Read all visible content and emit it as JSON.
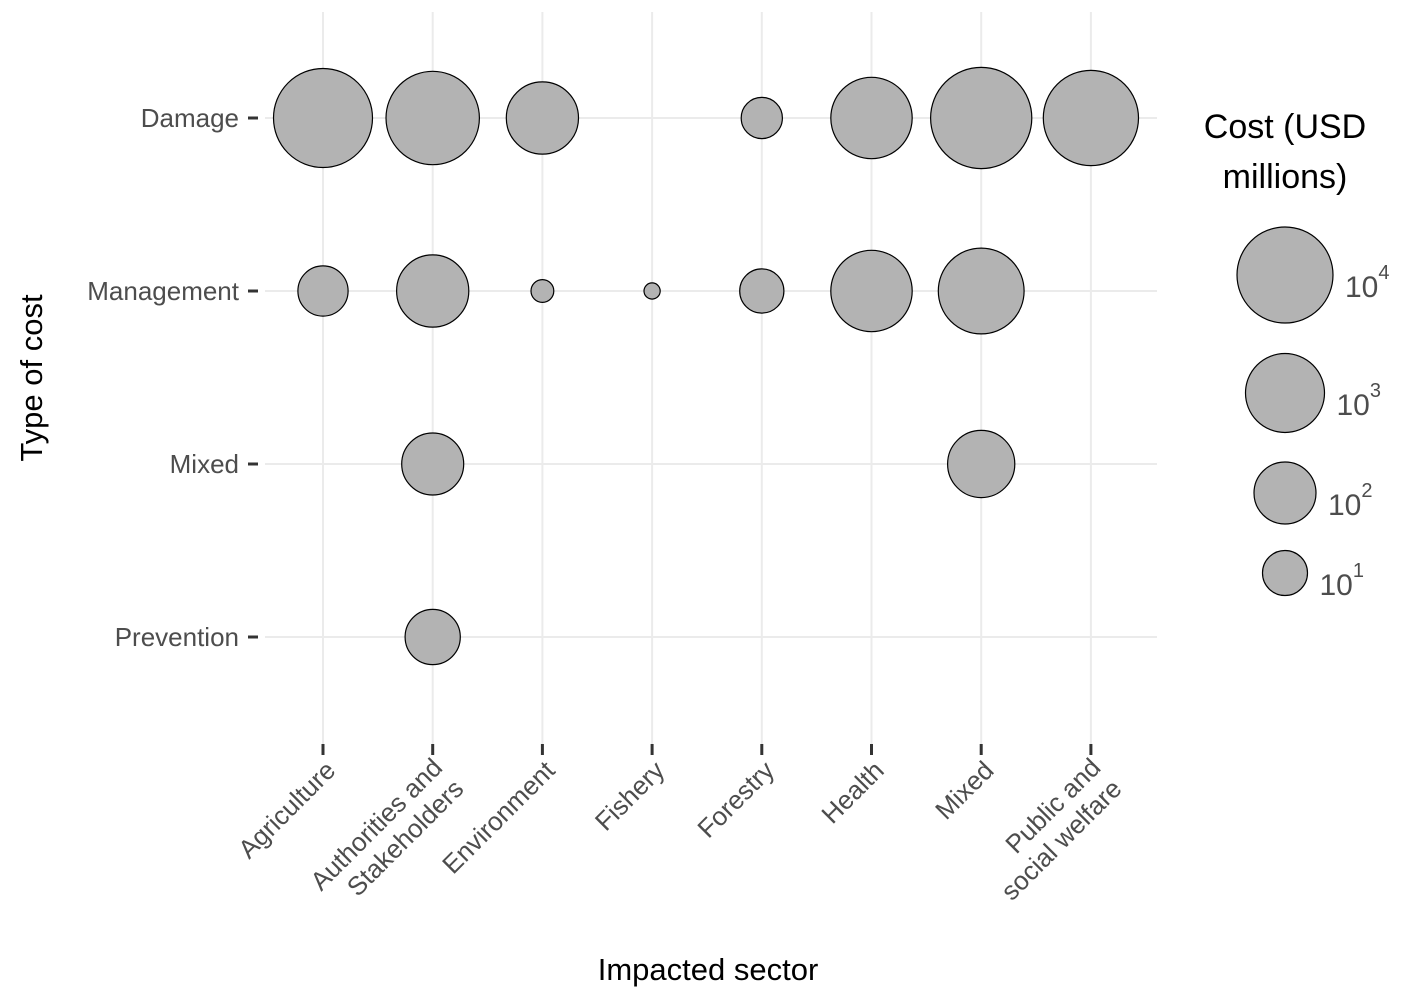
{
  "chart_data": {
    "type": "scatter",
    "xlabel": "Impacted sector",
    "ylabel": "Type of cost",
    "x_categories": [
      "Agriculture",
      "Authorities and Stakeholders",
      "Environment",
      "Fishery",
      "Forestry",
      "Health",
      "Mixed",
      "Public and social welfare"
    ],
    "y_categories": [
      "Damage",
      "Management",
      "Mixed",
      "Prevention"
    ],
    "size_legend": {
      "title": "Cost (USD millions)",
      "base": "10",
      "values": [
        10000,
        1000,
        100,
        10
      ],
      "exponents": [
        "4",
        "3",
        "2",
        "1"
      ],
      "scale": "log"
    },
    "points": [
      {
        "x": "Agriculture",
        "y": "Damage",
        "cost": 15000
      },
      {
        "x": "Authorities and Stakeholders",
        "y": "Damage",
        "cost": 7000
      },
      {
        "x": "Environment",
        "y": "Damage",
        "cost": 400
      },
      {
        "x": "Forestry",
        "y": "Damage",
        "cost": 6
      },
      {
        "x": "Health",
        "y": "Damage",
        "cost": 1400
      },
      {
        "x": "Mixed",
        "y": "Damage",
        "cost": 20000
      },
      {
        "x": "Public and social welfare",
        "y": "Damage",
        "cost": 9000
      },
      {
        "x": "Agriculture",
        "y": "Management",
        "cost": 20
      },
      {
        "x": "Authorities and Stakeholders",
        "y": "Management",
        "cost": 400
      },
      {
        "x": "Environment",
        "y": "Management",
        "cost": 0.5
      },
      {
        "x": "Fishery",
        "y": "Management",
        "cost": 0.2
      },
      {
        "x": "Forestry",
        "y": "Management",
        "cost": 9
      },
      {
        "x": "Health",
        "y": "Management",
        "cost": 1400
      },
      {
        "x": "Mixed",
        "y": "Management",
        "cost": 2500
      },
      {
        "x": "Authorities and Stakeholders",
        "y": "Mixed",
        "cost": 100
      },
      {
        "x": "Mixed",
        "y": "Mixed",
        "cost": 200
      },
      {
        "x": "Authorities and Stakeholders",
        "y": "Prevention",
        "cost": 40
      }
    ],
    "point_fill": "#b3b3b3",
    "point_stroke": "#000000",
    "grid": true,
    "legend_position": "right"
  }
}
